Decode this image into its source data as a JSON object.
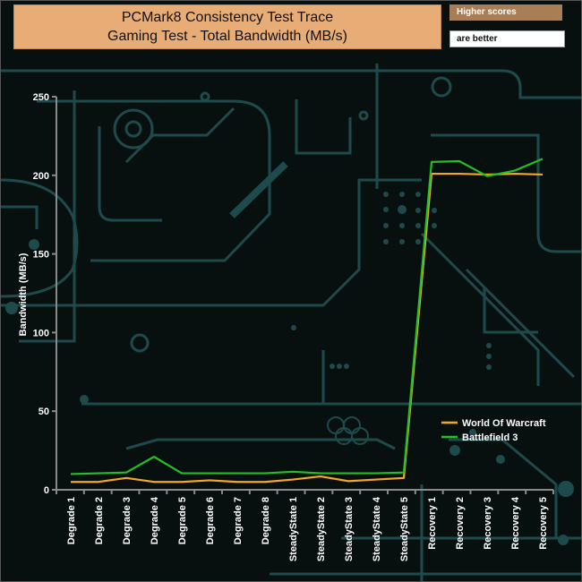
{
  "header": {
    "title_line1": "PCMark8 Consistency Test Trace",
    "title_line2": "Gaming Test - Total Bandwidth (MB/s)",
    "note_line1": "Higher scores",
    "note_line2": "are better"
  },
  "colors": {
    "background": "#07100f",
    "circuit": "#1e4a4c",
    "axis": "#8a8a8a",
    "title_box": "#e8ad76",
    "note_box": "#a87e56"
  },
  "chart_data": {
    "type": "line",
    "title": "PCMark8 Consistency Test Trace\nGaming Test - Total Bandwidth (MB/s)",
    "xlabel": "",
    "ylabel": "Bandwidth (MB/s)",
    "ylim": [
      0,
      250
    ],
    "yticks": [
      0,
      50,
      100,
      150,
      200,
      250
    ],
    "grid": false,
    "legend_position": "bottom-right",
    "categories": [
      "Degrade 1",
      "Degrade 2",
      "Degrade 3",
      "Degrade 4",
      "Degrade 5",
      "Degrade 6",
      "Degrade 7",
      "Degrade 8",
      "SteadyState 1",
      "SteadyState 2",
      "SteadyState 3",
      "SteadyState 4",
      "SteadyState 5",
      "Recovery 1",
      "Recovery 2",
      "Recovery 3",
      "Recovery 4",
      "Recovery 5"
    ],
    "series": [
      {
        "name": "World Of Warcraft",
        "color": "#f5a623",
        "values": [
          5,
          5,
          7.5,
          5,
          5,
          6,
          5,
          5,
          6.5,
          8.5,
          5.5,
          6.5,
          7.5,
          201,
          201,
          200.5,
          201,
          200.5
        ]
      },
      {
        "name": "Battlefield 3",
        "color": "#22c022",
        "values": [
          10,
          10.5,
          11,
          21,
          10.5,
          10.5,
          10.5,
          10.5,
          11.5,
          10.5,
          10.5,
          10.5,
          11,
          208.5,
          209,
          199.5,
          203,
          210.5
        ]
      }
    ]
  }
}
